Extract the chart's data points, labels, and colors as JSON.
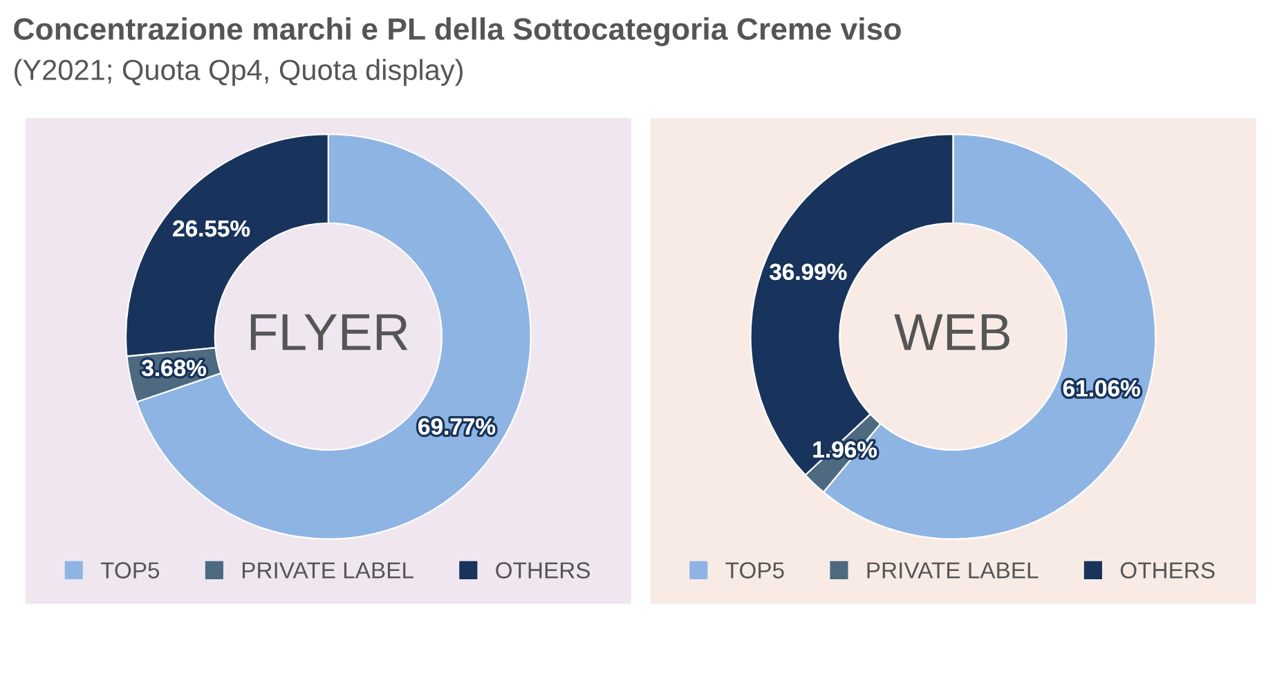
{
  "chart_data": [
    {
      "type": "donut",
      "title": "FLYER",
      "annotations": [
        "Concentrazione marchi e PL della Sottocategoria Creme viso",
        "(Y2021; Quota Qp4, Quota display)"
      ],
      "categories": [
        "TOP5",
        "PRIVATE LABEL",
        "OTHERS"
      ],
      "values": [
        69.77,
        3.68,
        26.55
      ],
      "value_labels": [
        "69.77%",
        "3.68%",
        "26.55%"
      ],
      "colors": [
        "#8eb4e3",
        "#4d6a80",
        "#18345c"
      ],
      "legend": "bottom"
    },
    {
      "type": "donut",
      "title": "WEB",
      "categories": [
        "TOP5",
        "PRIVATE LABEL",
        "OTHERS"
      ],
      "values": [
        61.06,
        1.96,
        36.99
      ],
      "value_labels": [
        "61.06%",
        "1.96%",
        "36.99%"
      ],
      "colors": [
        "#8eb4e3",
        "#4d6a80",
        "#18345c"
      ],
      "legend": "bottom"
    }
  ]
}
